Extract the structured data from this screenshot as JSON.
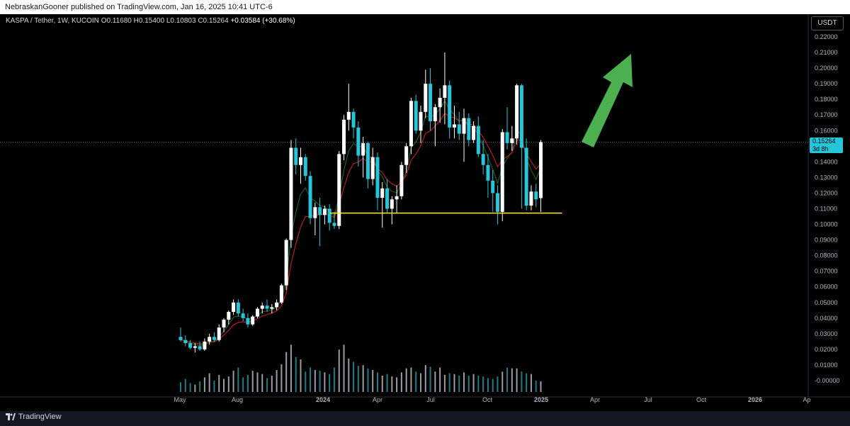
{
  "header": {
    "published_text": "NebraskanGooner published on TradingView.com, Jan 16, 2025 10:41 UTC-6"
  },
  "legend": {
    "symbol": "KASPA / Tether, 1W, KUCOIN",
    "open": "O0.11680",
    "high": "H0.15400",
    "low": "L0.10803",
    "close": "C0.15264",
    "change": "+0.03584 (+30.68%)"
  },
  "price_scale": {
    "currency": "USDT",
    "current_price": "0.15264",
    "countdown": "3d 8h"
  },
  "footer": {
    "brand": "TradingView"
  },
  "colors": {
    "up_candle": "#ffffff",
    "down_candle": "#26c6da",
    "ema_fast": "#1b5e20",
    "ema_slow": "#b71c1c",
    "support_line": "#ffeb3b",
    "arrow": "#4caf50"
  },
  "chart_data": {
    "type": "candlestick",
    "symbol": "KASPA / Tether",
    "interval": "1W",
    "exchange": "KUCOIN",
    "x_tick_labels": [
      "May",
      "Aug",
      "2024",
      "Apr",
      "Jul",
      "Oct",
      "2025",
      "Apr",
      "Jul",
      "Oct",
      "2026",
      "Ap"
    ],
    "y_tick_labels": [
      "0.22000",
      "0.21000",
      "0.20000",
      "0.19000",
      "0.18000",
      "0.17000",
      "0.16000",
      "0.15000",
      "0.14000",
      "0.13000",
      "0.12000",
      "0.11000",
      "0.10000",
      "0.09000",
      "0.08000",
      "0.07000",
      "0.06000",
      "0.05000",
      "0.04000",
      "0.03000",
      "0.02000",
      "0.01000",
      "-0.00000"
    ],
    "ylim": [
      -0.003,
      0.225
    ],
    "candles": [
      {
        "o": 0.028,
        "h": 0.034,
        "l": 0.025,
        "c": 0.026
      },
      {
        "o": 0.026,
        "h": 0.029,
        "l": 0.022,
        "c": 0.024
      },
      {
        "o": 0.024,
        "h": 0.026,
        "l": 0.02,
        "c": 0.021
      },
      {
        "o": 0.021,
        "h": 0.024,
        "l": 0.018,
        "c": 0.022
      },
      {
        "o": 0.022,
        "h": 0.025,
        "l": 0.019,
        "c": 0.02
      },
      {
        "o": 0.02,
        "h": 0.027,
        "l": 0.019,
        "c": 0.025
      },
      {
        "o": 0.025,
        "h": 0.03,
        "l": 0.023,
        "c": 0.028
      },
      {
        "o": 0.028,
        "h": 0.031,
        "l": 0.025,
        "c": 0.026
      },
      {
        "o": 0.026,
        "h": 0.036,
        "l": 0.025,
        "c": 0.034
      },
      {
        "o": 0.034,
        "h": 0.04,
        "l": 0.031,
        "c": 0.039
      },
      {
        "o": 0.039,
        "h": 0.045,
        "l": 0.036,
        "c": 0.044
      },
      {
        "o": 0.044,
        "h": 0.052,
        "l": 0.042,
        "c": 0.05
      },
      {
        "o": 0.05,
        "h": 0.052,
        "l": 0.041,
        "c": 0.043
      },
      {
        "o": 0.043,
        "h": 0.046,
        "l": 0.038,
        "c": 0.04
      },
      {
        "o": 0.04,
        "h": 0.043,
        "l": 0.034,
        "c": 0.036
      },
      {
        "o": 0.036,
        "h": 0.042,
        "l": 0.035,
        "c": 0.041
      },
      {
        "o": 0.041,
        "h": 0.047,
        "l": 0.04,
        "c": 0.046
      },
      {
        "o": 0.046,
        "h": 0.05,
        "l": 0.043,
        "c": 0.048
      },
      {
        "o": 0.048,
        "h": 0.052,
        "l": 0.044,
        "c": 0.046
      },
      {
        "o": 0.046,
        "h": 0.049,
        "l": 0.043,
        "c": 0.047
      },
      {
        "o": 0.047,
        "h": 0.052,
        "l": 0.045,
        "c": 0.05
      },
      {
        "o": 0.05,
        "h": 0.062,
        "l": 0.049,
        "c": 0.061
      },
      {
        "o": 0.061,
        "h": 0.091,
        "l": 0.058,
        "c": 0.09
      },
      {
        "o": 0.09,
        "h": 0.154,
        "l": 0.085,
        "c": 0.149
      },
      {
        "o": 0.149,
        "h": 0.155,
        "l": 0.132,
        "c": 0.138
      },
      {
        "o": 0.138,
        "h": 0.149,
        "l": 0.126,
        "c": 0.143
      },
      {
        "o": 0.143,
        "h": 0.145,
        "l": 0.128,
        "c": 0.131
      },
      {
        "o": 0.131,
        "h": 0.134,
        "l": 0.1,
        "c": 0.104
      },
      {
        "o": 0.104,
        "h": 0.114,
        "l": 0.093,
        "c": 0.111
      },
      {
        "o": 0.111,
        "h": 0.117,
        "l": 0.086,
        "c": 0.106
      },
      {
        "o": 0.106,
        "h": 0.112,
        "l": 0.1,
        "c": 0.11
      },
      {
        "o": 0.11,
        "h": 0.113,
        "l": 0.096,
        "c": 0.101
      },
      {
        "o": 0.101,
        "h": 0.108,
        "l": 0.097,
        "c": 0.099
      },
      {
        "o": 0.099,
        "h": 0.147,
        "l": 0.097,
        "c": 0.145
      },
      {
        "o": 0.145,
        "h": 0.17,
        "l": 0.141,
        "c": 0.167
      },
      {
        "o": 0.167,
        "h": 0.19,
        "l": 0.16,
        "c": 0.172
      },
      {
        "o": 0.172,
        "h": 0.174,
        "l": 0.155,
        "c": 0.162
      },
      {
        "o": 0.162,
        "h": 0.166,
        "l": 0.137,
        "c": 0.144
      },
      {
        "o": 0.144,
        "h": 0.156,
        "l": 0.13,
        "c": 0.152
      },
      {
        "o": 0.152,
        "h": 0.153,
        "l": 0.123,
        "c": 0.129
      },
      {
        "o": 0.129,
        "h": 0.149,
        "l": 0.125,
        "c": 0.143
      },
      {
        "o": 0.143,
        "h": 0.146,
        "l": 0.109,
        "c": 0.117
      },
      {
        "o": 0.117,
        "h": 0.127,
        "l": 0.098,
        "c": 0.123
      },
      {
        "o": 0.123,
        "h": 0.129,
        "l": 0.107,
        "c": 0.11
      },
      {
        "o": 0.11,
        "h": 0.118,
        "l": 0.1,
        "c": 0.116
      },
      {
        "o": 0.116,
        "h": 0.125,
        "l": 0.107,
        "c": 0.118
      },
      {
        "o": 0.118,
        "h": 0.14,
        "l": 0.116,
        "c": 0.138
      },
      {
        "o": 0.138,
        "h": 0.152,
        "l": 0.133,
        "c": 0.15
      },
      {
        "o": 0.15,
        "h": 0.181,
        "l": 0.145,
        "c": 0.179
      },
      {
        "o": 0.179,
        "h": 0.183,
        "l": 0.158,
        "c": 0.16
      },
      {
        "o": 0.16,
        "h": 0.176,
        "l": 0.152,
        "c": 0.172
      },
      {
        "o": 0.172,
        "h": 0.199,
        "l": 0.168,
        "c": 0.19
      },
      {
        "o": 0.19,
        "h": 0.2,
        "l": 0.16,
        "c": 0.166
      },
      {
        "o": 0.166,
        "h": 0.177,
        "l": 0.15,
        "c": 0.175
      },
      {
        "o": 0.175,
        "h": 0.187,
        "l": 0.165,
        "c": 0.181
      },
      {
        "o": 0.181,
        "h": 0.21,
        "l": 0.164,
        "c": 0.189
      },
      {
        "o": 0.189,
        "h": 0.192,
        "l": 0.155,
        "c": 0.162
      },
      {
        "o": 0.162,
        "h": 0.176,
        "l": 0.155,
        "c": 0.164
      },
      {
        "o": 0.164,
        "h": 0.172,
        "l": 0.154,
        "c": 0.158
      },
      {
        "o": 0.158,
        "h": 0.174,
        "l": 0.14,
        "c": 0.168
      },
      {
        "o": 0.168,
        "h": 0.171,
        "l": 0.15,
        "c": 0.154
      },
      {
        "o": 0.154,
        "h": 0.166,
        "l": 0.152,
        "c": 0.163
      },
      {
        "o": 0.163,
        "h": 0.169,
        "l": 0.143,
        "c": 0.145
      },
      {
        "o": 0.145,
        "h": 0.154,
        "l": 0.132,
        "c": 0.138
      },
      {
        "o": 0.138,
        "h": 0.145,
        "l": 0.117,
        "c": 0.128
      },
      {
        "o": 0.128,
        "h": 0.135,
        "l": 0.108,
        "c": 0.12
      },
      {
        "o": 0.12,
        "h": 0.125,
        "l": 0.1,
        "c": 0.108
      },
      {
        "o": 0.108,
        "h": 0.161,
        "l": 0.102,
        "c": 0.159
      },
      {
        "o": 0.159,
        "h": 0.175,
        "l": 0.148,
        "c": 0.152
      },
      {
        "o": 0.152,
        "h": 0.163,
        "l": 0.147,
        "c": 0.155
      },
      {
        "o": 0.155,
        "h": 0.19,
        "l": 0.151,
        "c": 0.189
      },
      {
        "o": 0.189,
        "h": 0.19,
        "l": 0.11,
        "c": 0.149
      },
      {
        "o": 0.149,
        "h": 0.155,
        "l": 0.109,
        "c": 0.112
      },
      {
        "o": 0.112,
        "h": 0.125,
        "l": 0.109,
        "c": 0.121
      },
      {
        "o": 0.121,
        "h": 0.126,
        "l": 0.111,
        "c": 0.116
      },
      {
        "o": 0.1168,
        "h": 0.154,
        "l": 0.10803,
        "c": 0.15264
      }
    ],
    "volume": [
      12,
      16,
      11,
      9,
      13,
      18,
      23,
      14,
      21,
      16,
      19,
      26,
      30,
      18,
      21,
      26,
      24,
      22,
      17,
      20,
      27,
      34,
      49,
      58,
      43,
      40,
      25,
      30,
      27,
      26,
      24,
      22,
      30,
      52,
      58,
      41,
      37,
      32,
      33,
      29,
      27,
      24,
      20,
      22,
      19,
      18,
      24,
      29,
      30,
      25,
      23,
      33,
      31,
      25,
      30,
      21,
      23,
      22,
      20,
      24,
      20,
      22,
      20,
      19,
      17,
      16,
      19,
      25,
      30,
      29,
      29,
      25,
      23,
      22,
      14,
      13
    ],
    "overlays": [
      {
        "name": "",
        "kind": "line",
        "color": "#1b5e20"
      },
      {
        "name": "",
        "kind": "line",
        "color": "#b71c1c"
      },
      {
        "name": "",
        "kind": "horizontal",
        "value": 0.1072,
        "color": "#ffeb3b"
      }
    ],
    "annotations": [
      {
        "kind": "arrow",
        "direction": "up-right",
        "color": "#4caf50"
      }
    ]
  }
}
